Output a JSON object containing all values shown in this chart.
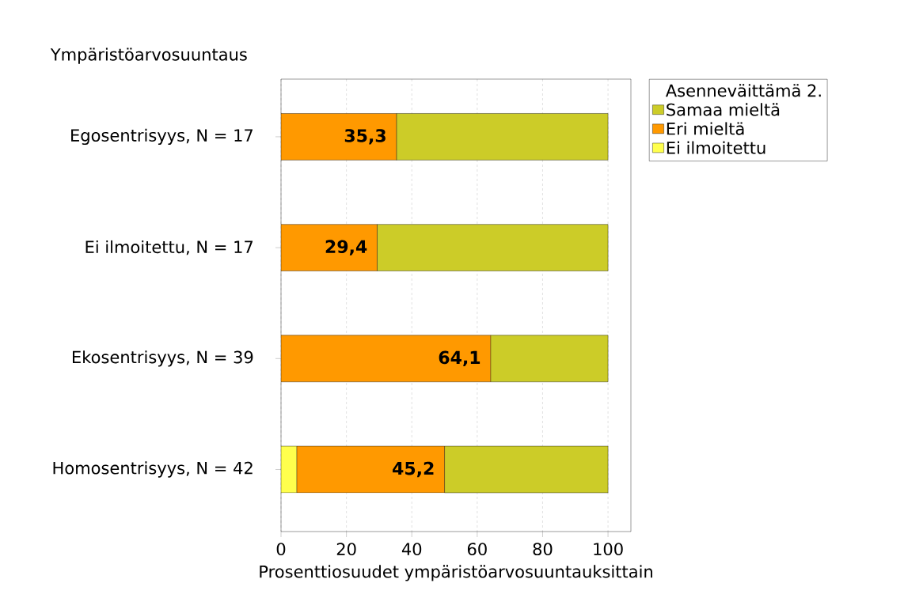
{
  "chart_data": {
    "type": "bar",
    "orientation": "horizontal",
    "stacked": true,
    "ylabel": "Ympäristöarvosuuntaus",
    "xlabel": "Prosenttiosuudet ympäristöarvosuuntauksittain",
    "categories": [
      "Egosentrisyys, N = 17",
      "Ei ilmoitettu, N = 17",
      "Ekosentrisyys, N = 39",
      "Homosentrisyys, N = 42"
    ],
    "series": [
      {
        "name": "Ei ilmoitettu",
        "color": "#ffff4d",
        "values": [
          0,
          0,
          0,
          4.8
        ]
      },
      {
        "name": "Eri mieltä",
        "color": "#ff9900",
        "values": [
          35.3,
          29.4,
          64.1,
          45.2
        ],
        "value_labels": [
          "35,3",
          "29,4",
          "64,1",
          "45,2"
        ]
      },
      {
        "name": "Samaa mieltä",
        "color": "#cccc28",
        "values": [
          64.7,
          70.6,
          35.9,
          50.0
        ]
      }
    ],
    "legend_title": "Asenneväittämä 2.",
    "legend": "right",
    "xlim": [
      0,
      107
    ],
    "xticks": [
      0,
      20,
      40,
      60,
      80,
      100
    ],
    "grid": "x"
  }
}
